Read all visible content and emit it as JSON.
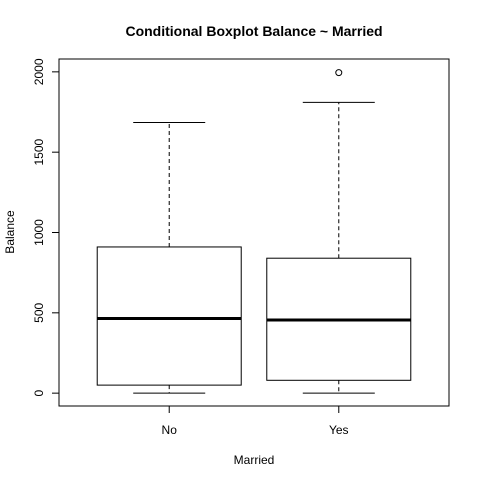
{
  "chart_data": {
    "type": "boxplot",
    "title": "Conditional Boxplot Balance ~ Married",
    "xlabel": "Married",
    "ylabel": "Balance",
    "categories": [
      "No",
      "Yes"
    ],
    "boxes": [
      {
        "category": "No",
        "min": 0,
        "q1": 50,
        "median": 465,
        "q3": 910,
        "max": 1685,
        "outliers": []
      },
      {
        "category": "Yes",
        "min": 0,
        "q1": 80,
        "median": 455,
        "q3": 840,
        "max": 1810,
        "outliers": [
          1995
        ]
      }
    ],
    "yticks": [
      "0",
      "500",
      "1000",
      "1500",
      "2000"
    ],
    "ylim": [
      -80,
      2080
    ],
    "grid": false
  }
}
